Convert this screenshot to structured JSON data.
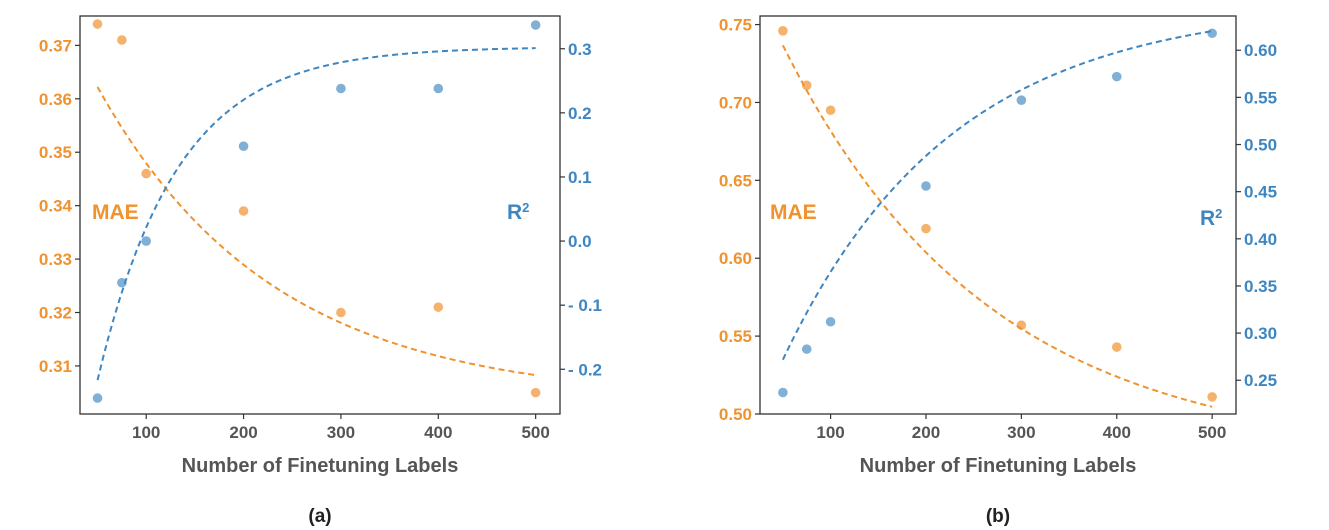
{
  "colors": {
    "mae": "#F0922E",
    "r2": "#3E86C2",
    "axis": "#333333",
    "text": "#555555"
  },
  "chart_data": [
    {
      "type": "scatter",
      "panel_label": "(a)",
      "xlabel": "Number of Finetuning Labels",
      "x_ticks": [
        100,
        200,
        300,
        400,
        500
      ],
      "x_tick_labels": [
        "100",
        "200",
        "300",
        "400",
        "500"
      ],
      "xlim": [
        32,
        525
      ],
      "left_axis": {
        "name": "MAE",
        "ylim": [
          0.301,
          0.3755
        ],
        "ticks": [
          0.31,
          0.32,
          0.33,
          0.34,
          0.35,
          0.36,
          0.37
        ],
        "tick_labels": [
          "0.31",
          "0.32",
          "0.33",
          "0.34",
          "0.35",
          "0.36",
          "0.37"
        ]
      },
      "right_axis": {
        "name": "R",
        "superscript": "2",
        "ylim": [
          -0.2698,
          0.3511
        ],
        "ticks": [
          -0.2,
          -0.1,
          0.0,
          0.1,
          0.2,
          0.3
        ],
        "tick_labels": [
          "- 0.2",
          "- 0.1",
          "0.0",
          "0.1",
          "0.2",
          "0.3"
        ]
      },
      "series": [
        {
          "name": "MAE",
          "axis": "left",
          "x": [
            50,
            75,
            100,
            200,
            300,
            400,
            500
          ],
          "values": [
            0.374,
            0.371,
            0.346,
            0.339,
            0.32,
            0.321,
            0.305
          ],
          "fit": {
            "a": 0.3035,
            "b": 0.0776,
            "tau": 179.34
          }
        },
        {
          "name": "R2",
          "axis": "right",
          "x": [
            50,
            75,
            100,
            200,
            300,
            400,
            500
          ],
          "values": [
            -0.245,
            -0.065,
            0.0,
            0.148,
            0.238,
            0.238,
            0.337
          ],
          "fit": {
            "a": 0.303,
            "b": 0.96,
            "tau": 81.55
          }
        }
      ]
    },
    {
      "type": "scatter",
      "panel_label": "(b)",
      "xlabel": "Number of Finetuning Labels",
      "x_ticks": [
        100,
        200,
        300,
        400,
        500
      ],
      "x_tick_labels": [
        "100",
        "200",
        "300",
        "400",
        "500"
      ],
      "xlim": [
        26,
        525
      ],
      "left_axis": {
        "name": "MAE",
        "ylim": [
          0.5,
          0.7555
        ],
        "ticks": [
          0.5,
          0.55,
          0.6,
          0.65,
          0.7,
          0.75
        ],
        "tick_labels": [
          "0.50",
          "0.55",
          "0.60",
          "0.65",
          "0.70",
          "0.75"
        ]
      },
      "right_axis": {
        "name": "R",
        "superscript": "2",
        "ylim": [
          0.2142,
          0.6363
        ],
        "ticks": [
          0.25,
          0.3,
          0.35,
          0.4,
          0.45,
          0.5,
          0.55,
          0.6
        ],
        "tick_labels": [
          "0.25",
          "0.30",
          "0.35",
          "0.40",
          "0.45",
          "0.50",
          "0.55",
          "0.60"
        ]
      },
      "series": [
        {
          "name": "MAE",
          "axis": "left",
          "x": [
            50,
            75,
            100,
            200,
            300,
            400,
            500
          ],
          "values": [
            0.746,
            0.711,
            0.695,
            0.619,
            0.557,
            0.543,
            0.511
          ],
          "fit": {
            "a": 0.472,
            "b": 0.334,
            "tau": 215
          }
        },
        {
          "name": "R2",
          "axis": "right",
          "x": [
            50,
            75,
            100,
            200,
            300,
            400,
            500
          ],
          "values": [
            0.237,
            0.283,
            0.312,
            0.456,
            0.547,
            0.572,
            0.618
          ],
          "fit": {
            "a": 0.65,
            "b": 0.5016,
            "tau": 177
          }
        }
      ]
    }
  ]
}
